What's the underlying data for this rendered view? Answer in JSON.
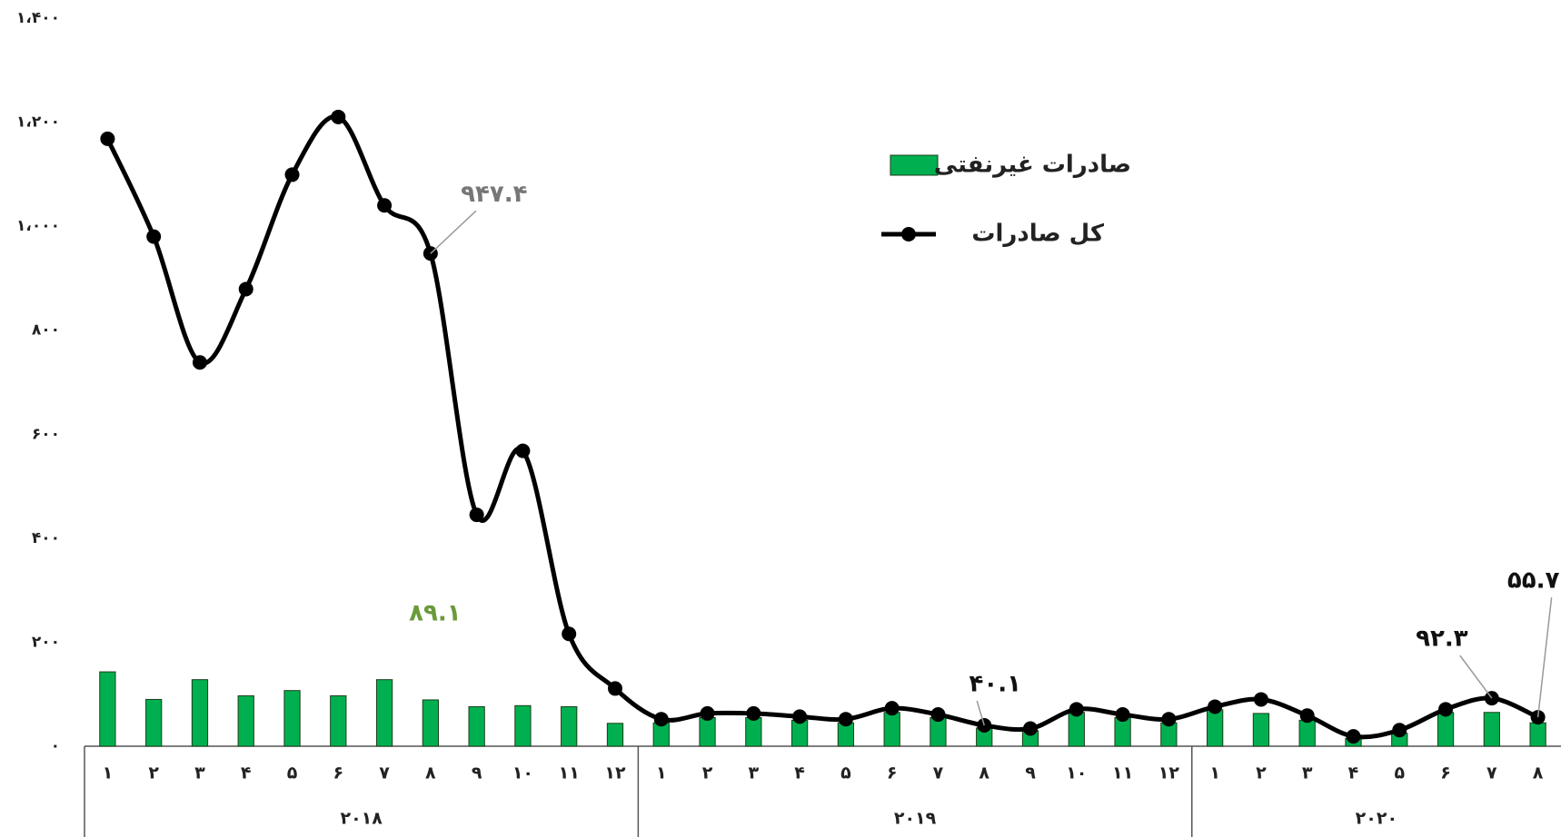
{
  "chart_data": {
    "type": "bar_line",
    "categories": [
      "۱",
      "۲",
      "۳",
      "۴",
      "۵",
      "۶",
      "۷",
      "۸",
      "۹",
      "۱۰",
      "۱۱",
      "۱۲",
      "۱",
      "۲",
      "۳",
      "۴",
      "۵",
      "۶",
      "۷",
      "۸",
      "۹",
      "۱۰",
      "۱۱",
      "۱۲",
      "۱",
      "۲",
      "۳",
      "۴",
      "۵",
      "۶",
      "۷",
      "۸"
    ],
    "groups": [
      {
        "label": "۲۰۱۸",
        "size": 12
      },
      {
        "label": "۲۰۱۹",
        "size": 12
      },
      {
        "label": "۲۰۲۰",
        "size": 8
      }
    ],
    "series": [
      {
        "name": "صادرات غیرنفتی",
        "type": "bar",
        "color": "#00b050",
        "label_color": "#6a9a3a",
        "values": [
          143,
          90,
          128,
          97,
          107,
          97,
          128,
          89.1,
          76,
          78,
          76,
          44,
          45,
          55,
          55,
          50,
          45,
          65,
          55,
          35,
          30,
          65,
          55,
          45,
          70,
          63,
          50,
          15,
          25,
          65,
          65,
          45
        ],
        "value_labels": [
          null,
          null,
          null,
          null,
          null,
          null,
          null,
          "۸۹.۱",
          null,
          null,
          null,
          null,
          null,
          null,
          null,
          null,
          null,
          null,
          null,
          null,
          null,
          null,
          null,
          null,
          null,
          null,
          null,
          null,
          null,
          null,
          null,
          null
        ]
      },
      {
        "name": "کل صادرات",
        "type": "line",
        "color": "#000000",
        "values": [
          1168,
          980,
          738,
          879,
          1099,
          1210,
          1040,
          947.4,
          445,
          568,
          216,
          111,
          52,
          63,
          63,
          57,
          52,
          73,
          61,
          40.1,
          34,
          71,
          61,
          52,
          76,
          90,
          59,
          19,
          31,
          71,
          92.3,
          55.7
        ],
        "value_labels": [
          null,
          null,
          null,
          null,
          null,
          null,
          null,
          "۹۴۷.۴",
          null,
          null,
          null,
          null,
          null,
          null,
          null,
          null,
          null,
          null,
          null,
          "۴۰.۱",
          null,
          null,
          null,
          null,
          null,
          null,
          null,
          null,
          null,
          null,
          "۹۲.۳",
          "۵۵.۷"
        ]
      }
    ],
    "ylim": [
      0,
      1400
    ],
    "yticks": [
      {
        "value": 0,
        "label": "۰"
      },
      {
        "value": 200,
        "label": "۲۰۰"
      },
      {
        "value": 400,
        "label": "۴۰۰"
      },
      {
        "value": 600,
        "label": "۶۰۰"
      },
      {
        "value": 800,
        "label": "۸۰۰"
      },
      {
        "value": 1000,
        "label": "۱،۰۰۰"
      },
      {
        "value": 1200,
        "label": "۱،۲۰۰"
      },
      {
        "value": 1400,
        "label": "۱،۴۰۰"
      }
    ],
    "grid": false
  }
}
